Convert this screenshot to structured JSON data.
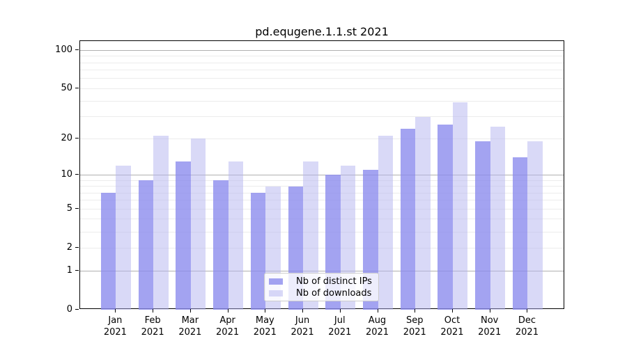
{
  "title": "pd.equgene.1.1.st 2021",
  "chart_data": {
    "type": "bar",
    "title": "pd.equgene.1.1.st 2021",
    "categories": [
      "Jan",
      "Feb",
      "Mar",
      "Apr",
      "May",
      "Jun",
      "Jul",
      "Aug",
      "Sep",
      "Oct",
      "Nov",
      "Dec"
    ],
    "category_year": "2021",
    "series": [
      {
        "name": "Nb of distinct IPs",
        "color": "#a3a3f1",
        "fill": "rgba(140,140,238,0.8)",
        "values": [
          7,
          9,
          13,
          9,
          7,
          8,
          10,
          11,
          24,
          26,
          19,
          14
        ]
      },
      {
        "name": "Nb of downloads",
        "color": "#d9d9f8",
        "fill": "rgba(180,180,240,0.5)",
        "values": [
          12,
          21,
          20,
          13,
          8,
          13,
          12,
          21,
          30,
          39,
          25,
          19
        ]
      }
    ],
    "y_ticks": [
      0,
      1,
      2,
      5,
      10,
      20,
      50,
      100
    ],
    "y_scale": "log10(1+x)",
    "ylim": [
      0,
      115
    ],
    "grid": true,
    "legend_position": "lower-center"
  }
}
